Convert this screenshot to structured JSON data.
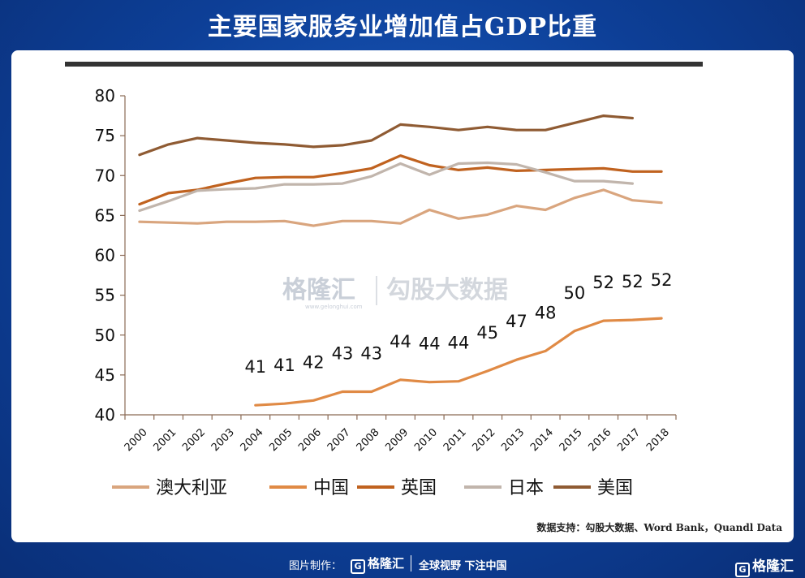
{
  "header": {
    "title": "主要国家服务业增加值占GDP比重"
  },
  "chart_data": {
    "type": "line",
    "x": [
      "2000",
      "2001",
      "2002",
      "2003",
      "2004",
      "2005",
      "2006",
      "2007",
      "2008",
      "2009",
      "2010",
      "2011",
      "2012",
      "2013",
      "2014",
      "2015",
      "2016",
      "2017",
      "2018"
    ],
    "ylim": [
      40,
      80
    ],
    "yticks": [
      40,
      45,
      50,
      55,
      60,
      65,
      70,
      75,
      80
    ],
    "grid": false,
    "legend_position": "bottom",
    "series": [
      {
        "name": "澳大利亚",
        "color": "#d9a57e",
        "values": [
          64.2,
          64.1,
          64.0,
          64.2,
          64.2,
          64.3,
          63.7,
          64.3,
          64.3,
          64.0,
          65.7,
          64.6,
          65.1,
          66.2,
          65.7,
          67.2,
          68.2,
          66.9,
          66.6
        ]
      },
      {
        "name": "中国",
        "color": "#e08a45",
        "values": [
          null,
          null,
          null,
          null,
          41.2,
          41.4,
          41.8,
          42.9,
          42.9,
          44.4,
          44.1,
          44.2,
          45.5,
          46.9,
          48.0,
          50.5,
          51.8,
          51.9,
          52.1
        ],
        "labels": [
          "",
          "",
          "",
          "",
          "41",
          "41",
          "42",
          "43",
          "43",
          "44",
          "44",
          "44",
          "45",
          "47",
          "48",
          "50",
          "52",
          "52",
          "52"
        ]
      },
      {
        "name": "英国",
        "color": "#c0621f",
        "values": [
          66.4,
          67.8,
          68.2,
          69.0,
          69.7,
          69.8,
          69.8,
          70.3,
          70.9,
          72.5,
          71.3,
          70.7,
          71.0,
          70.6,
          70.7,
          70.8,
          70.9,
          70.5,
          70.5
        ]
      },
      {
        "name": "日本",
        "color": "#c1b5ac",
        "values": [
          65.6,
          66.8,
          68.1,
          68.3,
          68.4,
          68.9,
          68.9,
          69.0,
          69.9,
          71.5,
          70.1,
          71.5,
          71.6,
          71.4,
          70.4,
          69.3,
          69.3,
          69.0,
          null
        ]
      },
      {
        "name": "美国",
        "color": "#8f5b33",
        "values": [
          72.6,
          73.9,
          74.7,
          74.4,
          74.1,
          73.9,
          73.6,
          73.8,
          74.4,
          76.4,
          76.1,
          75.7,
          76.1,
          75.7,
          75.7,
          76.6,
          77.5,
          77.2,
          null
        ]
      }
    ]
  },
  "watermark": {
    "logo": "格隆汇",
    "sub": "www.gelonghui.com",
    "text": "勾股大数据"
  },
  "source": "数据支持：勾股大数据、Word Bank，Quandl Data",
  "footer": {
    "made_by": "图片制作：",
    "logo": "格隆汇",
    "slogan": "全球视野 下注中国",
    "corner_logo": "格隆汇"
  }
}
